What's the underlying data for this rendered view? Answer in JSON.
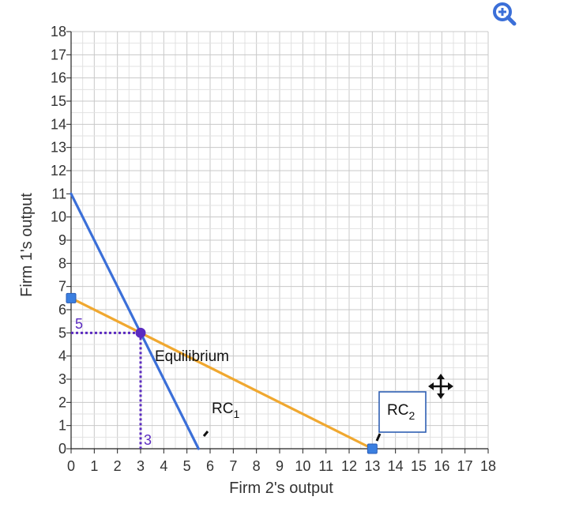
{
  "toolbar": {
    "zoom_icon": "zoom-in-icon",
    "move_icon": "move-icon"
  },
  "chart_data": {
    "type": "line",
    "xlabel": "Firm 2's output",
    "ylabel": "Firm 1's output",
    "xlim": [
      0,
      18
    ],
    "ylim": [
      0,
      18
    ],
    "xticks": [
      "0",
      "1",
      "2",
      "3",
      "4",
      "5",
      "6",
      "7",
      "8",
      "9",
      "10",
      "11",
      "12",
      "13",
      "14",
      "15",
      "16",
      "17",
      "18"
    ],
    "yticks": [
      "0",
      "1",
      "2",
      "3",
      "4",
      "5",
      "6",
      "7",
      "8",
      "9",
      "10",
      "11",
      "12",
      "13",
      "14",
      "15",
      "16",
      "17",
      "18"
    ],
    "grid": true,
    "series": [
      {
        "name": "RC1",
        "color": "#3b6fd8",
        "points": [
          [
            0,
            11
          ],
          [
            5.5,
            0
          ]
        ]
      },
      {
        "name": "RC2",
        "color": "#f0a830",
        "points": [
          [
            0,
            6.5
          ],
          [
            13,
            0
          ]
        ]
      }
    ],
    "handles": [
      [
        0,
        6.5
      ],
      [
        13,
        0
      ]
    ],
    "equilibrium": {
      "x": 3,
      "y": 5,
      "label": "Equilibrium",
      "color": "#5b2bc0"
    },
    "guide_labels": {
      "x_value": "3",
      "y_value": "5",
      "color": "#5b2bc0"
    },
    "rc1_label": {
      "main": "RC",
      "sub": "1"
    },
    "rc2_label": {
      "main": "RC",
      "sub": "2"
    }
  }
}
